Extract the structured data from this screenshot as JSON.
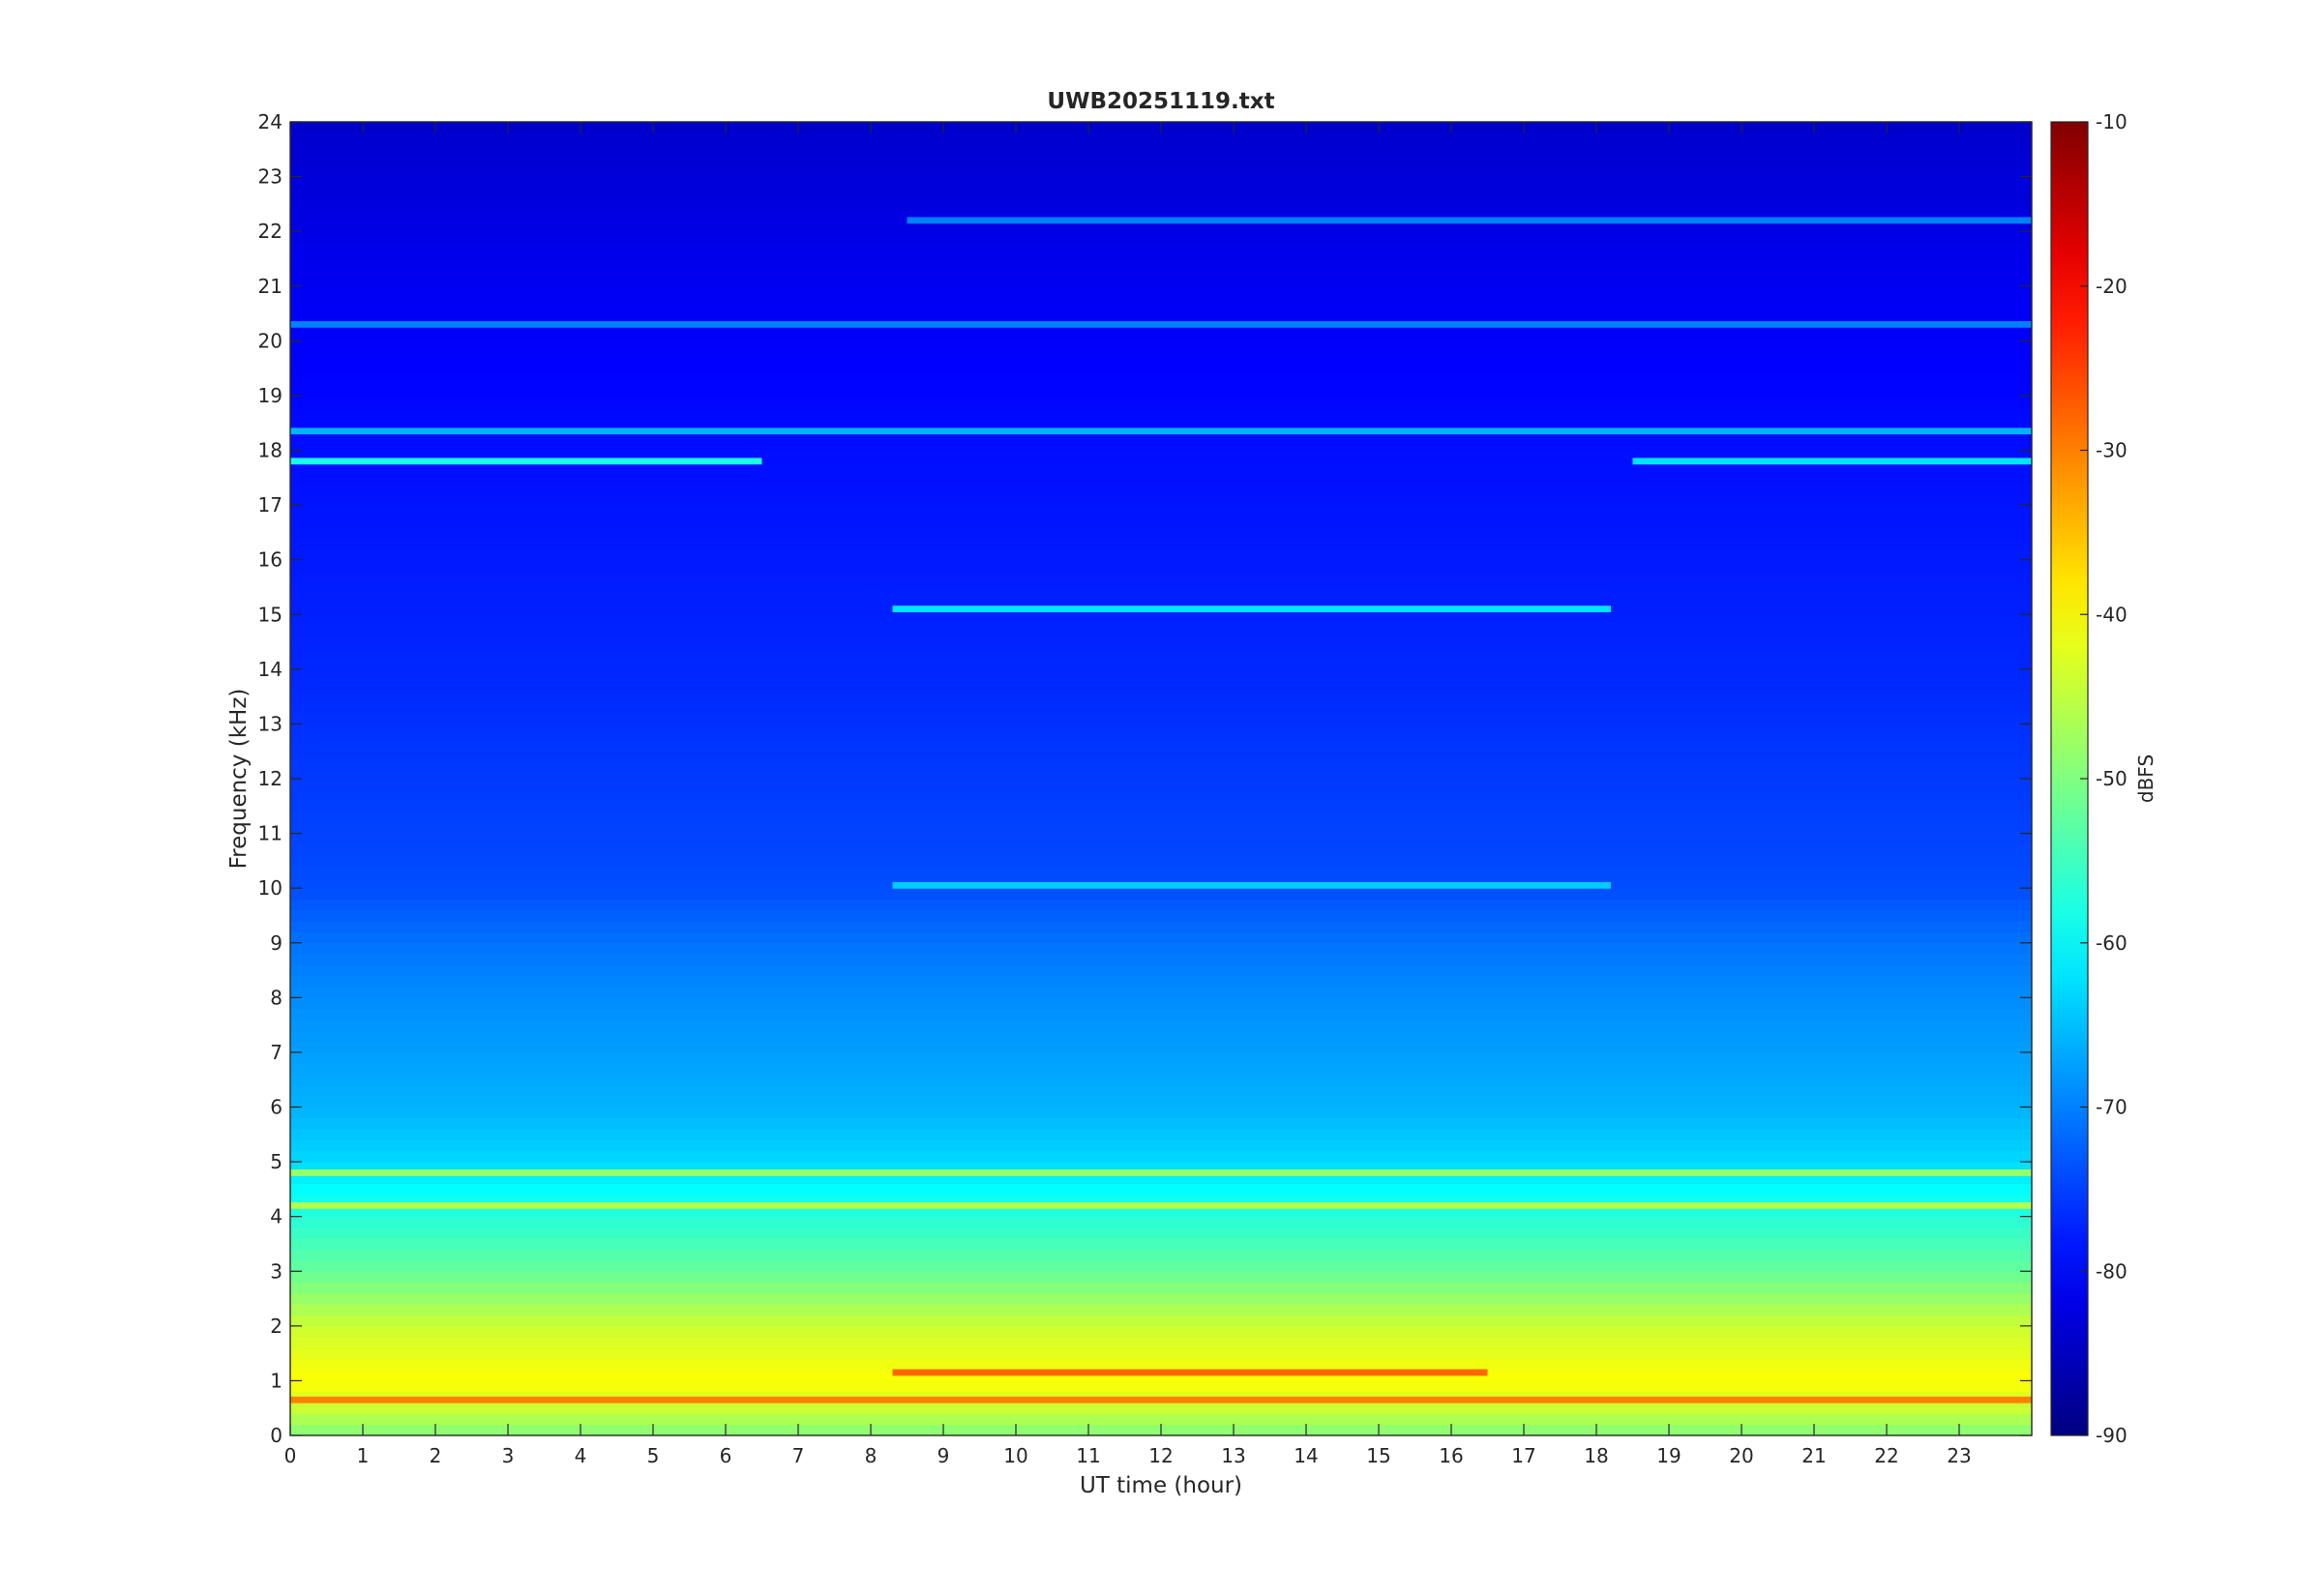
{
  "chart_data": {
    "type": "heatmap",
    "title": "UWB20251119.txt",
    "xlabel": "UT time (hour)",
    "ylabel": "Frequency (kHz)",
    "x_range": [
      0,
      24
    ],
    "y_range": [
      0,
      24
    ],
    "x_ticks": [
      "0",
      "1",
      "2",
      "3",
      "4",
      "5",
      "6",
      "7",
      "8",
      "9",
      "10",
      "11",
      "12",
      "13",
      "14",
      "15",
      "16",
      "17",
      "18",
      "19",
      "20",
      "21",
      "22",
      "23"
    ],
    "y_ticks": [
      "0",
      "1",
      "2",
      "3",
      "4",
      "5",
      "6",
      "7",
      "8",
      "9",
      "10",
      "11",
      "12",
      "13",
      "14",
      "15",
      "16",
      "17",
      "18",
      "19",
      "20",
      "21",
      "22",
      "23",
      "24"
    ],
    "colormap": "jet",
    "colorbar": {
      "label": "dBFS",
      "range": [
        -90,
        -10
      ],
      "ticks": [
        "-90",
        "-80",
        "-70",
        "-60",
        "-50",
        "-40",
        "-30",
        "-20",
        "-10"
      ]
    },
    "background_level_profile": [
      {
        "freq_khz": 0.0,
        "dbfs": -50
      },
      {
        "freq_khz": 0.5,
        "dbfs": -44
      },
      {
        "freq_khz": 1.0,
        "dbfs": -40
      },
      {
        "freq_khz": 2.0,
        "dbfs": -44
      },
      {
        "freq_khz": 3.0,
        "dbfs": -52
      },
      {
        "freq_khz": 4.0,
        "dbfs": -57
      },
      {
        "freq_khz": 5.0,
        "dbfs": -63
      },
      {
        "freq_khz": 6.0,
        "dbfs": -66
      },
      {
        "freq_khz": 8.0,
        "dbfs": -69
      },
      {
        "freq_khz": 9.0,
        "dbfs": -71
      },
      {
        "freq_khz": 10.0,
        "dbfs": -74
      },
      {
        "freq_khz": 14.0,
        "dbfs": -77
      },
      {
        "freq_khz": 18.0,
        "dbfs": -79
      },
      {
        "freq_khz": 21.0,
        "dbfs": -81
      },
      {
        "freq_khz": 24.0,
        "dbfs": -84
      }
    ],
    "notable_lines": [
      {
        "freq_khz": 0.65,
        "start_hour": 0,
        "end_hour": 24,
        "dbfs": -30
      },
      {
        "freq_khz": 1.15,
        "start_hour": 8.3,
        "end_hour": 16.5,
        "dbfs": -28
      },
      {
        "freq_khz": 4.2,
        "start_hour": 0,
        "end_hour": 24,
        "dbfs": -46
      },
      {
        "freq_khz": 4.8,
        "start_hour": 0,
        "end_hour": 24,
        "dbfs": -48
      },
      {
        "freq_khz": 18.35,
        "start_hour": 0,
        "end_hour": 24,
        "dbfs": -66
      },
      {
        "freq_khz": 17.8,
        "start_hour": 0,
        "end_hour": 6.5,
        "dbfs": -58
      },
      {
        "freq_khz": 17.8,
        "start_hour": 18.5,
        "end_hour": 24,
        "dbfs": -62
      },
      {
        "freq_khz": 20.3,
        "start_hour": 0,
        "end_hour": 24,
        "dbfs": -70
      },
      {
        "freq_khz": 22.2,
        "start_hour": 8.5,
        "end_hour": 24,
        "dbfs": -70
      },
      {
        "freq_khz": 15.1,
        "start_hour": 8.3,
        "end_hour": 18.2,
        "dbfs": -62
      },
      {
        "freq_khz": 10.05,
        "start_hour": 8.3,
        "end_hour": 18.2,
        "dbfs": -64
      }
    ]
  }
}
